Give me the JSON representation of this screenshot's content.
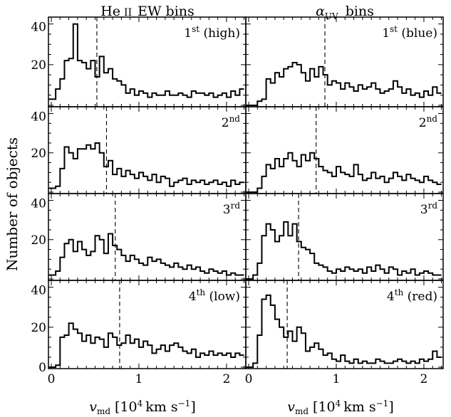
{
  "figure": {
    "ylabel": "Number of objects",
    "xlabel": "v_md [10^4 km s^-1]",
    "x_ticks": [
      "0",
      "1",
      "2"
    ],
    "y_ticks": [
      "0",
      "20",
      "40"
    ],
    "columns": [
      {
        "title": "He ii EW bins"
      },
      {
        "title": "α_UV bins"
      }
    ]
  },
  "chart_data": [
    {
      "type": "histogram",
      "column": "He ii EW bins",
      "row": 1,
      "label": "1st (high)",
      "xlim": [
        0,
        2.22
      ],
      "ylim": [
        0,
        42
      ],
      "bin_width": 0.05,
      "dashed_line_x": 0.52,
      "values": [
        3,
        8,
        13,
        22,
        23,
        40,
        22,
        21,
        18,
        22,
        14,
        24,
        16,
        18,
        13,
        12,
        10,
        6,
        8,
        5,
        7,
        6,
        4,
        6,
        5,
        5,
        7,
        5,
        5,
        6,
        5,
        4,
        7,
        6,
        6,
        5,
        6,
        4,
        5,
        6,
        4,
        7,
        5,
        8
      ]
    },
    {
      "type": "histogram",
      "column": "α_UV bins",
      "row": 1,
      "label": "1st (blue)",
      "xlim": [
        0,
        2.22
      ],
      "ylim": [
        0,
        42
      ],
      "bin_width": 0.05,
      "dashed_line_x": 0.87,
      "values": [
        0,
        0,
        2,
        3,
        13,
        11,
        16,
        14,
        18,
        19,
        21,
        20,
        16,
        12,
        18,
        14,
        19,
        15,
        10,
        12,
        11,
        8,
        11,
        9,
        7,
        10,
        8,
        9,
        11,
        8,
        6,
        7,
        8,
        12,
        9,
        6,
        8,
        5,
        6,
        4,
        7,
        5,
        9,
        6
      ]
    },
    {
      "type": "histogram",
      "column": "He ii EW bins",
      "row": 2,
      "label": "2nd",
      "xlim": [
        0,
        2.22
      ],
      "ylim": [
        0,
        42
      ],
      "bin_width": 0.05,
      "dashed_line_x": 0.63,
      "values": [
        2,
        3,
        12,
        23,
        20,
        17,
        22,
        22,
        24,
        22,
        25,
        20,
        13,
        16,
        9,
        12,
        8,
        11,
        9,
        7,
        10,
        8,
        6,
        9,
        5,
        8,
        7,
        3,
        5,
        6,
        7,
        4,
        6,
        5,
        6,
        4,
        5,
        6,
        4,
        5,
        3,
        6,
        4,
        5
      ]
    },
    {
      "type": "histogram",
      "column": "α_UV bins",
      "row": 2,
      "label": "2nd",
      "xlim": [
        0,
        2.22
      ],
      "ylim": [
        0,
        42
      ],
      "bin_width": 0.05,
      "dashed_line_x": 0.77,
      "values": [
        0,
        0,
        2,
        8,
        14,
        12,
        17,
        13,
        17,
        20,
        16,
        13,
        19,
        16,
        20,
        17,
        13,
        11,
        10,
        8,
        13,
        10,
        9,
        8,
        14,
        9,
        6,
        7,
        10,
        7,
        8,
        5,
        7,
        10,
        8,
        6,
        9,
        7,
        6,
        5,
        8,
        6,
        5,
        4
      ]
    },
    {
      "type": "histogram",
      "column": "He ii EW bins",
      "row": 3,
      "label": "3rd",
      "xlim": [
        0,
        2.22
      ],
      "ylim": [
        0,
        42
      ],
      "bin_width": 0.05,
      "dashed_line_x": 0.73,
      "values": [
        2,
        4,
        11,
        18,
        20,
        14,
        19,
        15,
        12,
        14,
        22,
        20,
        13,
        23,
        17,
        15,
        12,
        9,
        12,
        10,
        8,
        7,
        11,
        9,
        10,
        8,
        7,
        6,
        8,
        6,
        5,
        7,
        5,
        6,
        4,
        3,
        5,
        4,
        3,
        4,
        2,
        3,
        2,
        2
      ]
    },
    {
      "type": "histogram",
      "column": "α_UV bins",
      "row": 3,
      "label": "3rd",
      "xlim": [
        0,
        2.22
      ],
      "ylim": [
        0,
        42
      ],
      "bin_width": 0.05,
      "dashed_line_x": 0.57,
      "values": [
        0,
        2,
        8,
        22,
        28,
        25,
        19,
        22,
        29,
        22,
        28,
        19,
        16,
        15,
        13,
        8,
        7,
        6,
        4,
        3,
        5,
        4,
        6,
        5,
        4,
        5,
        3,
        6,
        4,
        7,
        5,
        3,
        6,
        5,
        2,
        4,
        3,
        5,
        2,
        3,
        4,
        3,
        2,
        2
      ]
    },
    {
      "type": "histogram",
      "column": "He ii EW bins",
      "row": 4,
      "label": "4th (low)",
      "xlim": [
        0,
        2.22
      ],
      "ylim": [
        0,
        42
      ],
      "bin_width": 0.05,
      "dashed_line_x": 0.78,
      "values": [
        0,
        1,
        15,
        16,
        22,
        19,
        17,
        13,
        16,
        12,
        15,
        14,
        10,
        17,
        15,
        11,
        12,
        16,
        12,
        14,
        10,
        13,
        11,
        7,
        9,
        11,
        8,
        11,
        12,
        10,
        8,
        7,
        9,
        5,
        7,
        6,
        8,
        6,
        7,
        6,
        7,
        5,
        7,
        6
      ]
    },
    {
      "type": "histogram",
      "column": "α_UV bins",
      "row": 4,
      "label": "4th (red)",
      "xlim": [
        0,
        2.22
      ],
      "ylim": [
        0,
        42
      ],
      "bin_width": 0.05,
      "dashed_line_x": 0.44,
      "values": [
        0,
        2,
        16,
        34,
        36,
        31,
        24,
        20,
        15,
        18,
        13,
        20,
        17,
        8,
        10,
        12,
        9,
        6,
        7,
        4,
        3,
        6,
        3,
        2,
        4,
        2,
        3,
        2,
        2,
        4,
        3,
        2,
        2,
        3,
        4,
        3,
        2,
        3,
        2,
        4,
        3,
        4,
        8,
        5
      ]
    }
  ]
}
